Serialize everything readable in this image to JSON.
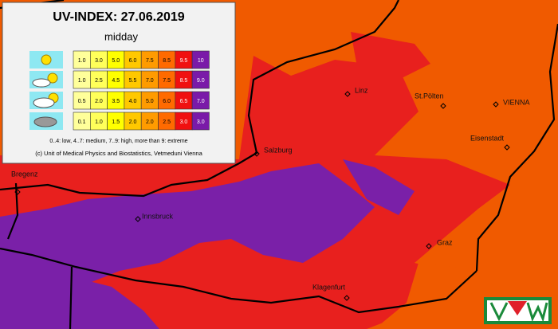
{
  "legend": {
    "title": "UV-INDEX:  27.06.2019",
    "subtitle": "midday",
    "rows": [
      [
        "1.0",
        "3.0",
        "5.0",
        "6.0",
        "7.5",
        "8.5",
        "9.5",
        "10"
      ],
      [
        "1.0",
        "2.5",
        "4.5",
        "5.5",
        "7.0",
        "7.5",
        "8.5",
        "9.0"
      ],
      [
        "0.5",
        "2.0",
        "3.5",
        "4.0",
        "5.0",
        "6.0",
        "6.5",
        "7.0"
      ],
      [
        "0.1",
        "1.0",
        "1.5",
        "2.0",
        "2.0",
        "2.5",
        "3.0",
        "3.0"
      ]
    ],
    "colors": [
      "#ffff9a",
      "#ffff5a",
      "#ffff00",
      "#ffc800",
      "#ff9b00",
      "#ff6a00",
      "#f01010",
      "#7a1aa8"
    ],
    "scale_note": "0..4: low, 4..7: medium, 7..9: high, more than 9: extreme",
    "copyright": "(c) Unit of Medical Physics and Biostatistics, Vetmeduni Vienna"
  },
  "cities": [
    {
      "name": "Linz"
    },
    {
      "name": "St.Pölten"
    },
    {
      "name": "VIENNA"
    },
    {
      "name": "Eisenstadt"
    },
    {
      "name": "Salzburg"
    },
    {
      "name": "Bregenz"
    },
    {
      "name": "Innsbruck"
    },
    {
      "name": "Graz"
    },
    {
      "name": "Klagenfurt"
    }
  ]
}
